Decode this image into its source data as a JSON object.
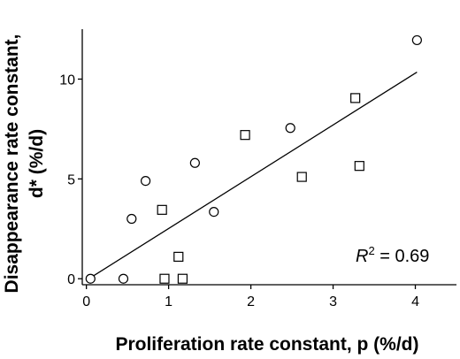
{
  "chart_data": {
    "type": "scatter",
    "title": "",
    "xlabel": "Proliferation rate constant, p (%/d)",
    "ylabel_line1": "Disappearance rate constant,",
    "ylabel_line2": "d* (%/d)",
    "xlim": [
      -0.05,
      4.5
    ],
    "ylim": [
      -0.3,
      12.5
    ],
    "xticks": [
      0,
      1,
      2,
      3,
      4
    ],
    "xtick_labels": [
      "0",
      "1",
      "2",
      "3",
      "4"
    ],
    "yticks": [
      0,
      5,
      10
    ],
    "ytick_labels": [
      "0",
      "5",
      "10"
    ],
    "grid": false,
    "legend": "none",
    "series": [
      {
        "marker": "circle",
        "points": [
          {
            "x": 0.05,
            "y": 0.0
          },
          {
            "x": 0.45,
            "y": 0.0
          },
          {
            "x": 0.55,
            "y": 3.0
          },
          {
            "x": 0.72,
            "y": 4.9
          },
          {
            "x": 1.32,
            "y": 5.8
          },
          {
            "x": 1.55,
            "y": 3.35
          },
          {
            "x": 2.48,
            "y": 7.55
          },
          {
            "x": 4.02,
            "y": 11.95
          }
        ]
      },
      {
        "marker": "square",
        "points": [
          {
            "x": 0.92,
            "y": 3.45
          },
          {
            "x": 0.95,
            "y": 0.0
          },
          {
            "x": 1.12,
            "y": 1.1
          },
          {
            "x": 1.17,
            "y": 0.0
          },
          {
            "x": 1.93,
            "y": 7.2
          },
          {
            "x": 2.62,
            "y": 5.1
          },
          {
            "x": 3.27,
            "y": 9.05
          },
          {
            "x": 3.32,
            "y": 5.65
          }
        ]
      }
    ],
    "fit_line": {
      "x": [
        0.05,
        4.02
      ],
      "y": [
        0.05,
        10.35
      ]
    },
    "annotation": {
      "r": "R",
      "sup": "2",
      "rest": " = 0.69"
    }
  }
}
